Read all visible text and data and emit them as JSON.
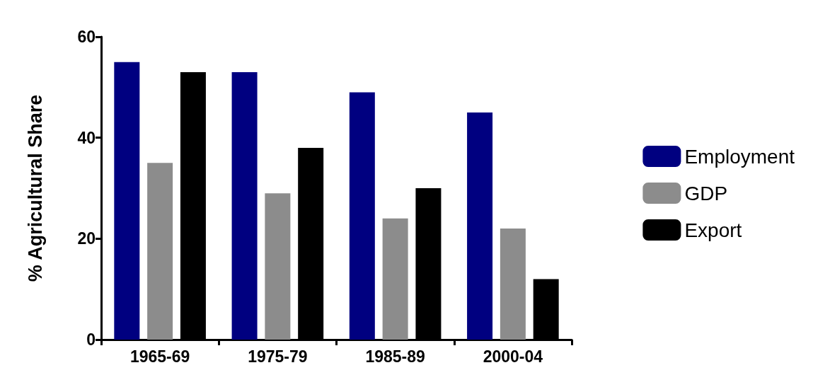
{
  "chart_data": {
    "type": "bar",
    "ylabel": "% Agricultural Share",
    "categories": [
      "1965-69",
      "1975-79",
      "1985-89",
      "2000-04"
    ],
    "series": [
      {
        "name": "Employment",
        "color": "#000080",
        "values": [
          55,
          53,
          49,
          45
        ]
      },
      {
        "name": "GDP",
        "color": "#8c8c8c",
        "values": [
          35,
          29,
          24,
          22
        ]
      },
      {
        "name": "Export",
        "color": "#000000",
        "values": [
          53,
          38,
          30,
          12
        ]
      }
    ],
    "ylim": [
      0,
      60
    ],
    "yticks": [
      0,
      20,
      40,
      60
    ],
    "grid": false,
    "legend": "right"
  }
}
